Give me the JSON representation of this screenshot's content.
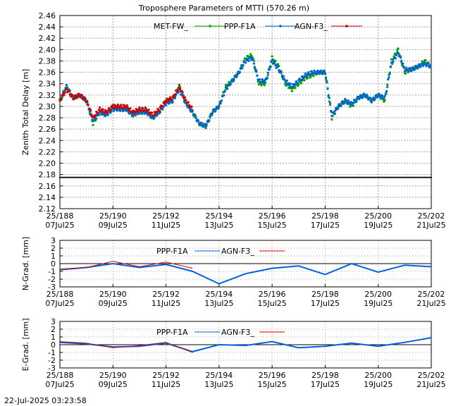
{
  "title": "Troposphere Parameters of MTTI (570.26 m)",
  "timestamp": "22-Jul-2025 03:23:58",
  "colors": {
    "met": "#00a000",
    "ppp": "#0060e0",
    "agn": "#d00000",
    "zero": "#000000"
  },
  "chart_data": [
    {
      "type": "scatter",
      "panel": "ztd",
      "ylabel": "Zenith Total Delay [m]",
      "ylim": [
        2.12,
        2.46
      ],
      "yticks": [
        "2.12",
        "2.14",
        "2.16",
        "2.18",
        "2.20",
        "2.22",
        "2.24",
        "2.26",
        "2.28",
        "2.30",
        "2.32",
        "2.34",
        "2.36",
        "2.38",
        "2.40",
        "2.42",
        "2.44",
        "2.46"
      ],
      "xlim": [
        188,
        202
      ],
      "xticks": [
        {
          "day": 188,
          "l1": "25/188",
          "l2": "07Jul25"
        },
        {
          "day": 190,
          "l1": "25/190",
          "l2": "09Jul25"
        },
        {
          "day": 192,
          "l1": "25/192",
          "l2": "11Jul25"
        },
        {
          "day": 194,
          "l1": "25/194",
          "l2": "13Jul25"
        },
        {
          "day": 196,
          "l1": "25/196",
          "l2": "15Jul25"
        },
        {
          "day": 198,
          "l1": "25/198",
          "l2": "17Jul25"
        },
        {
          "day": 200,
          "l1": "25/200",
          "l2": "19Jul25"
        },
        {
          "day": 202,
          "l1": "25/202",
          "l2": "21Jul25"
        }
      ],
      "grid": true,
      "legend_position": "top",
      "series": [
        {
          "name": "MET-FW_",
          "color": "#00a000",
          "x": [
            188,
            188.25,
            188.5,
            188.75,
            189,
            189.25,
            189.5,
            189.75,
            190,
            190.25,
            190.5,
            190.75,
            191,
            191.25,
            191.5,
            191.75,
            192,
            192.25,
            192.5,
            192.75,
            193,
            193.25,
            193.5,
            193.75,
            194,
            194.25,
            194.5,
            194.75,
            195,
            195.25,
            195.5,
            195.75,
            196,
            196.25,
            196.5,
            196.75,
            197,
            197.25,
            197.5,
            197.75,
            198,
            198.25,
            198.5,
            198.75,
            199,
            199.25,
            199.5,
            199.75,
            200,
            200.25,
            200.5,
            200.75,
            201,
            201.25,
            201.5,
            201.75,
            202
          ],
          "y": [
            2.31,
            2.335,
            2.315,
            2.32,
            2.31,
            2.27,
            2.29,
            2.285,
            2.3,
            2.295,
            2.295,
            2.285,
            2.29,
            2.29,
            2.28,
            2.29,
            2.31,
            2.31,
            2.335,
            2.305,
            2.29,
            2.27,
            2.265,
            2.29,
            2.3,
            2.335,
            2.345,
            2.36,
            2.385,
            2.39,
            2.34,
            2.34,
            2.385,
            2.37,
            2.34,
            2.33,
            2.34,
            2.35,
            2.355,
            2.36,
            2.36,
            2.28,
            2.3,
            2.31,
            2.3,
            2.315,
            2.32,
            2.31,
            2.32,
            2.31,
            2.38,
            2.4,
            2.36,
            2.365,
            2.37,
            2.38,
            2.37
          ]
        },
        {
          "name": "PPP-F1A",
          "color": "#0060e0",
          "x": [
            188,
            188.25,
            188.5,
            188.75,
            189,
            189.25,
            189.5,
            189.75,
            190,
            190.25,
            190.5,
            190.75,
            191,
            191.25,
            191.5,
            191.75,
            192,
            192.25,
            192.5,
            192.75,
            193,
            193.25,
            193.5,
            193.75,
            194,
            194.25,
            194.5,
            194.75,
            195,
            195.25,
            195.5,
            195.75,
            196,
            196.25,
            196.5,
            196.75,
            197,
            197.25,
            197.5,
            197.75,
            198,
            198.25,
            198.5,
            198.75,
            199,
            199.25,
            199.5,
            199.75,
            200,
            200.25,
            200.5,
            200.75,
            201,
            201.25,
            201.5,
            201.75,
            202
          ],
          "y": [
            2.31,
            2.335,
            2.315,
            2.32,
            2.31,
            2.275,
            2.29,
            2.285,
            2.295,
            2.295,
            2.295,
            2.285,
            2.29,
            2.29,
            2.28,
            2.29,
            2.305,
            2.31,
            2.33,
            2.305,
            2.29,
            2.27,
            2.265,
            2.29,
            2.3,
            2.33,
            2.345,
            2.36,
            2.38,
            2.385,
            2.345,
            2.345,
            2.38,
            2.365,
            2.345,
            2.335,
            2.345,
            2.355,
            2.36,
            2.36,
            2.36,
            2.285,
            2.3,
            2.31,
            2.305,
            2.315,
            2.32,
            2.31,
            2.32,
            2.315,
            2.375,
            2.395,
            2.365,
            2.365,
            2.37,
            2.375,
            2.37
          ]
        },
        {
          "name": "AGN-F3_",
          "color": "#d00000",
          "x": [
            188,
            188.25,
            188.5,
            188.75,
            189,
            189.25,
            189.5,
            189.75,
            190,
            190.25,
            190.5,
            190.75,
            191,
            191.25,
            191.5,
            191.75,
            192,
            192.25,
            192.5,
            192.75,
            193
          ],
          "y": [
            2.31,
            2.33,
            2.315,
            2.32,
            2.31,
            2.28,
            2.295,
            2.29,
            2.3,
            2.3,
            2.3,
            2.29,
            2.295,
            2.295,
            2.285,
            2.295,
            2.31,
            2.315,
            2.335,
            2.31,
            2.295
          ]
        },
        {
          "name": "",
          "color": "#000000",
          "x": [
            188,
            202
          ],
          "y": [
            2.175,
            2.175
          ]
        }
      ]
    },
    {
      "type": "line",
      "panel": "ngrad",
      "ylabel": "N-Grad. [mm]",
      "ylim": [
        -3,
        3
      ],
      "yticks": [
        "-3",
        "-2",
        "-1",
        "0",
        "1",
        "2",
        "3"
      ],
      "xlim": [
        188,
        202
      ],
      "grid": true,
      "legend_position": "top",
      "series": [
        {
          "name": "PPP-F1A",
          "color": "#0060e0",
          "x": [
            188,
            189,
            190,
            191,
            192,
            193,
            194,
            195,
            196,
            197,
            198,
            199,
            200,
            201,
            202
          ],
          "y": [
            -0.8,
            -0.5,
            0.0,
            -0.5,
            -0.1,
            -1.0,
            -2.6,
            -1.3,
            -0.6,
            -0.3,
            -1.4,
            0.0,
            -1.1,
            -0.2,
            -0.4
          ]
        },
        {
          "name": "AGN-F3_",
          "color": "#d00000",
          "x": [
            188,
            189,
            190,
            191,
            192,
            193
          ],
          "y": [
            -0.7,
            -0.5,
            0.3,
            -0.4,
            0.2,
            -0.6
          ]
        }
      ]
    },
    {
      "type": "line",
      "panel": "egrad",
      "ylabel": "E-Grad. [mm]",
      "ylim": [
        -3,
        3
      ],
      "yticks": [
        "-3",
        "-2",
        "-1",
        "0",
        "1",
        "2",
        "3"
      ],
      "xlim": [
        188,
        202
      ],
      "grid": true,
      "legend_position": "top",
      "series": [
        {
          "name": "PPP-F1A",
          "color": "#0060e0",
          "x": [
            188,
            189,
            190,
            191,
            192,
            193,
            194,
            195,
            196,
            197,
            198,
            199,
            200,
            201,
            202
          ],
          "y": [
            0.3,
            0.1,
            -0.3,
            -0.2,
            0.2,
            -0.9,
            0.0,
            -0.1,
            0.4,
            -0.4,
            -0.2,
            0.2,
            -0.2,
            0.3,
            0.9
          ]
        },
        {
          "name": "AGN-F3_",
          "color": "#d00000",
          "x": [
            188,
            189,
            190,
            191,
            192,
            193
          ],
          "y": [
            0.4,
            0.2,
            -0.4,
            -0.1,
            0.3,
            -1.0
          ]
        }
      ]
    }
  ]
}
